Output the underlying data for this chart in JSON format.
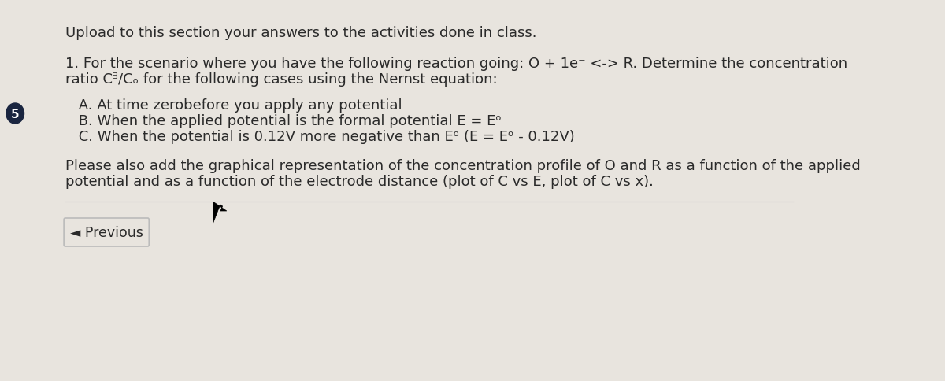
{
  "background_color": "#e8e4de",
  "title_text": "Upload to this section your answers to the activities done in class.",
  "paragraph1_line1": "1. For the scenario where you have the following reaction going: O + 1e⁻ <-> R. Determine the concentration",
  "paragraph1_line2": "ratio Cᴲ/Cₒ for the following cases using the Nernst equation:",
  "item_a": " A. At time zerobefore you apply any potential",
  "item_b": " B. When the applied potential is the formal potential E = Eᵒ",
  "item_c": " C. When the potential is 0.12V more negative than Eᵒ (E = Eᵒ - 0.12V)",
  "paragraph2_line1": "Please also add the graphical representation of the concentration profile of O and R as a function of the applied",
  "paragraph2_line2": "potential and as a function of the electrode distance (plot of C vs E, plot of C vs x).",
  "button_text": "◄ Previous",
  "circle_number": "5",
  "circle_color": "#1a2540",
  "text_color": "#2a2a2a",
  "font_size_body": 13.0,
  "button_border_color": "#bbbbbb",
  "separator_color": "#bbbbbb"
}
